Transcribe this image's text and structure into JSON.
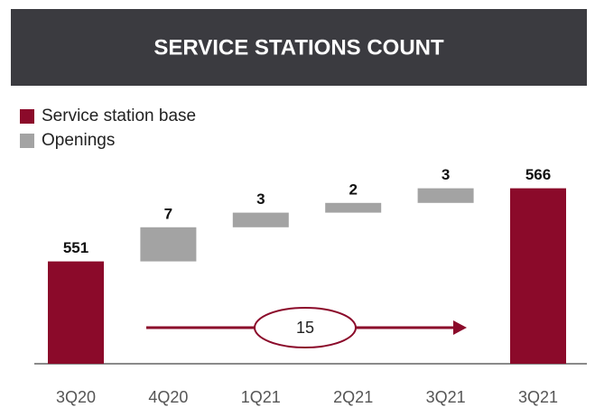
{
  "chart_data": {
    "type": "waterfall",
    "title": "SERVICE STATIONS COUNT",
    "categories": [
      "3Q20",
      "4Q20",
      "1Q21",
      "2Q21",
      "3Q21",
      "3Q21"
    ],
    "series": [
      {
        "name": "Service station base",
        "color": "#8b0a2a",
        "values": [
          551,
          null,
          null,
          null,
          null,
          566
        ]
      },
      {
        "name": "Openings",
        "color": "#a3a3a3",
        "values": [
          null,
          7,
          3,
          2,
          3,
          null
        ]
      }
    ],
    "annotation": "15",
    "ylim": [
      530,
      570
    ]
  }
}
